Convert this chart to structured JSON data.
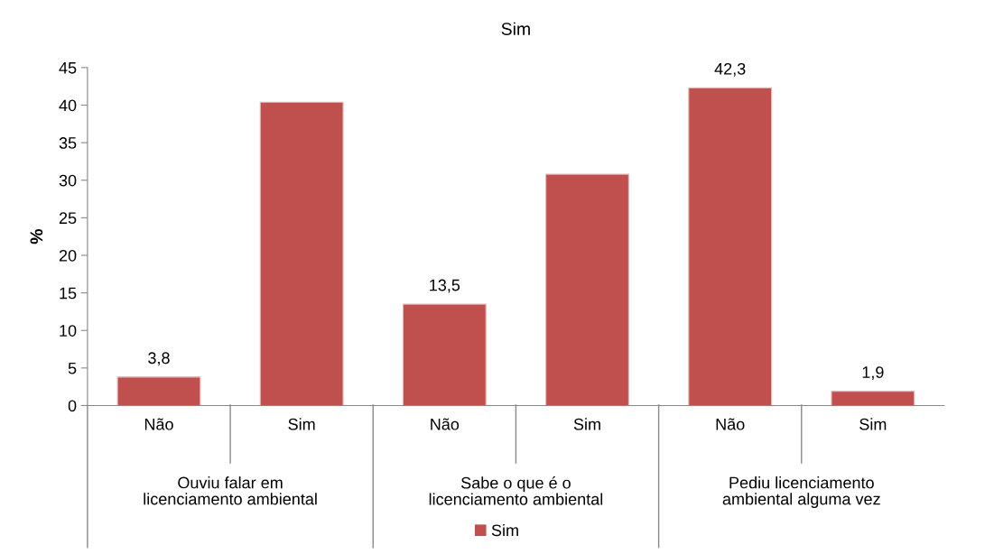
{
  "chart_data": {
    "type": "bar",
    "title": "Sim",
    "ylabel": "%",
    "categories": [
      "Não",
      "Sim",
      "Não",
      "Sim",
      "Não",
      "Sim"
    ],
    "series": [
      {
        "name": "Sim",
        "color": "#c0504d",
        "values": [
          3.8,
          40.4,
          13.5,
          30.8,
          42.3,
          1.9
        ],
        "value_labels": [
          "3,8",
          null,
          "13,5",
          null,
          "42,3",
          "1,9"
        ]
      }
    ],
    "annotations": [
      "Ouviu falar em\nlicenciamento ambiental",
      "Sabe o que é o\nlicenciamento ambiental",
      "Pediu licenciamento\nambiental alguma vez"
    ],
    "ylim": [
      0,
      45
    ],
    "yticks": [
      0,
      5,
      10,
      15,
      20,
      25,
      30,
      35,
      40,
      45
    ],
    "grid": false,
    "legend": "bottom"
  }
}
